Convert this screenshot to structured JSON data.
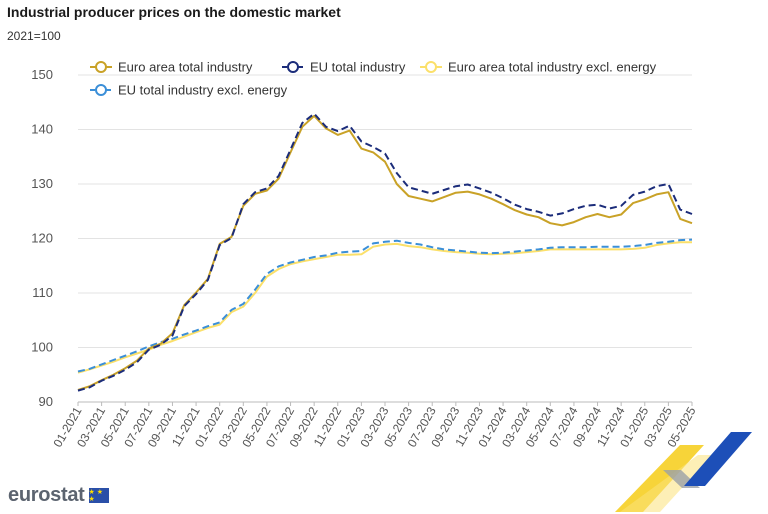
{
  "chart_data": {
    "type": "line",
    "title": "Industrial producer prices on the domestic market",
    "subtitle": "2021=100",
    "xlabel": "",
    "ylabel": "",
    "ylim": [
      90,
      150
    ],
    "yticks": [
      90,
      100,
      110,
      120,
      130,
      140,
      150
    ],
    "grid": true,
    "legend_position": "top",
    "x": [
      "01-2021",
      "02-2021",
      "03-2021",
      "04-2021",
      "05-2021",
      "06-2021",
      "07-2021",
      "08-2021",
      "09-2021",
      "10-2021",
      "11-2021",
      "12-2021",
      "01-2022",
      "02-2022",
      "03-2022",
      "04-2022",
      "05-2022",
      "06-2022",
      "07-2022",
      "08-2022",
      "09-2022",
      "10-2022",
      "11-2022",
      "12-2022",
      "01-2023",
      "02-2023",
      "03-2023",
      "04-2023",
      "05-2023",
      "06-2023",
      "07-2023",
      "08-2023",
      "09-2023",
      "10-2023",
      "11-2023",
      "12-2023",
      "01-2024",
      "02-2024",
      "03-2024",
      "04-2024",
      "05-2024",
      "06-2024",
      "07-2024",
      "08-2024",
      "09-2024",
      "10-2024",
      "11-2024",
      "12-2024",
      "01-2025",
      "02-2025",
      "03-2025",
      "04-2025",
      "05-2025"
    ],
    "x_tick_labels": [
      "01-2021",
      "03-2021",
      "05-2021",
      "07-2021",
      "09-2021",
      "11-2021",
      "01-2022",
      "03-2022",
      "05-2022",
      "07-2022",
      "09-2022",
      "11-2022",
      "01-2023",
      "03-2023",
      "05-2023",
      "07-2023",
      "09-2023",
      "11-2023",
      "01-2024",
      "03-2024",
      "05-2024",
      "07-2024",
      "09-2024",
      "11-2024",
      "01-2025",
      "03-2025",
      "05-2025"
    ],
    "series": [
      {
        "name": "Euro area total industry",
        "color": "#c9a227",
        "dashed": false,
        "values": [
          92.2,
          92.9,
          94.0,
          95.0,
          96.2,
          97.6,
          99.8,
          100.7,
          102.6,
          107.8,
          110.1,
          112.6,
          119.0,
          120.3,
          126.0,
          128.2,
          128.8,
          131.0,
          135.8,
          140.5,
          142.5,
          140.2,
          139.0,
          139.8,
          136.5,
          135.8,
          134.1,
          130.0,
          127.8,
          127.3,
          126.8,
          127.6,
          128.4,
          128.6,
          128.1,
          127.3,
          126.3,
          125.2,
          124.4,
          123.9,
          122.8,
          122.4,
          123.0,
          123.9,
          124.5,
          123.9,
          124.4,
          126.5,
          127.2,
          128.1,
          128.5,
          123.6,
          122.8
        ]
      },
      {
        "name": "EU total industry",
        "color": "#1b2c7a",
        "dashed": true,
        "values": [
          92.1,
          92.7,
          93.9,
          94.8,
          95.9,
          97.3,
          99.6,
          100.5,
          102.2,
          107.6,
          109.8,
          112.4,
          118.8,
          120.1,
          126.3,
          128.5,
          129.2,
          131.5,
          136.3,
          141.2,
          142.9,
          140.5,
          139.7,
          140.7,
          137.8,
          136.8,
          135.6,
          132.0,
          129.4,
          128.8,
          128.2,
          128.9,
          129.6,
          129.9,
          129.2,
          128.4,
          127.4,
          126.2,
          125.4,
          124.9,
          124.2,
          124.6,
          125.4,
          126.0,
          126.2,
          125.5,
          126.0,
          128.0,
          128.6,
          129.6,
          130.0,
          125.3,
          124.5
        ]
      },
      {
        "name": "Euro area total industry excl. energy",
        "color": "#fbe06a",
        "dashed": false,
        "values": [
          95.4,
          96.0,
          96.7,
          97.4,
          98.2,
          98.9,
          99.6,
          100.5,
          101.2,
          102.0,
          102.8,
          103.6,
          104.2,
          106.5,
          107.5,
          110.0,
          113.0,
          114.4,
          115.3,
          115.8,
          116.2,
          116.6,
          117.0,
          117.0,
          117.1,
          118.5,
          118.9,
          119.0,
          118.6,
          118.4,
          118.0,
          117.7,
          117.5,
          117.4,
          117.2,
          117.1,
          117.2,
          117.3,
          117.5,
          117.7,
          118.0,
          118.0,
          118.0,
          118.0,
          118.0,
          118.0,
          118.0,
          118.1,
          118.3,
          118.8,
          119.1,
          119.3,
          119.3
        ]
      },
      {
        "name": "EU total industry excl. energy",
        "color": "#3b8fd8",
        "dashed": true,
        "values": [
          95.6,
          96.1,
          96.9,
          97.7,
          98.5,
          99.3,
          100.2,
          101.0,
          101.6,
          102.4,
          103.1,
          103.9,
          104.6,
          106.9,
          108.0,
          110.6,
          113.5,
          114.9,
          115.6,
          116.1,
          116.6,
          116.9,
          117.4,
          117.6,
          117.7,
          119.1,
          119.4,
          119.6,
          119.2,
          118.9,
          118.4,
          118.0,
          117.8,
          117.6,
          117.4,
          117.3,
          117.4,
          117.6,
          117.8,
          118.0,
          118.3,
          118.4,
          118.4,
          118.4,
          118.5,
          118.5,
          118.5,
          118.6,
          118.8,
          119.2,
          119.4,
          119.7,
          119.8
        ]
      }
    ]
  },
  "branding": {
    "logo_text": "eurostat",
    "flag_stars": "★ ★ ★"
  }
}
